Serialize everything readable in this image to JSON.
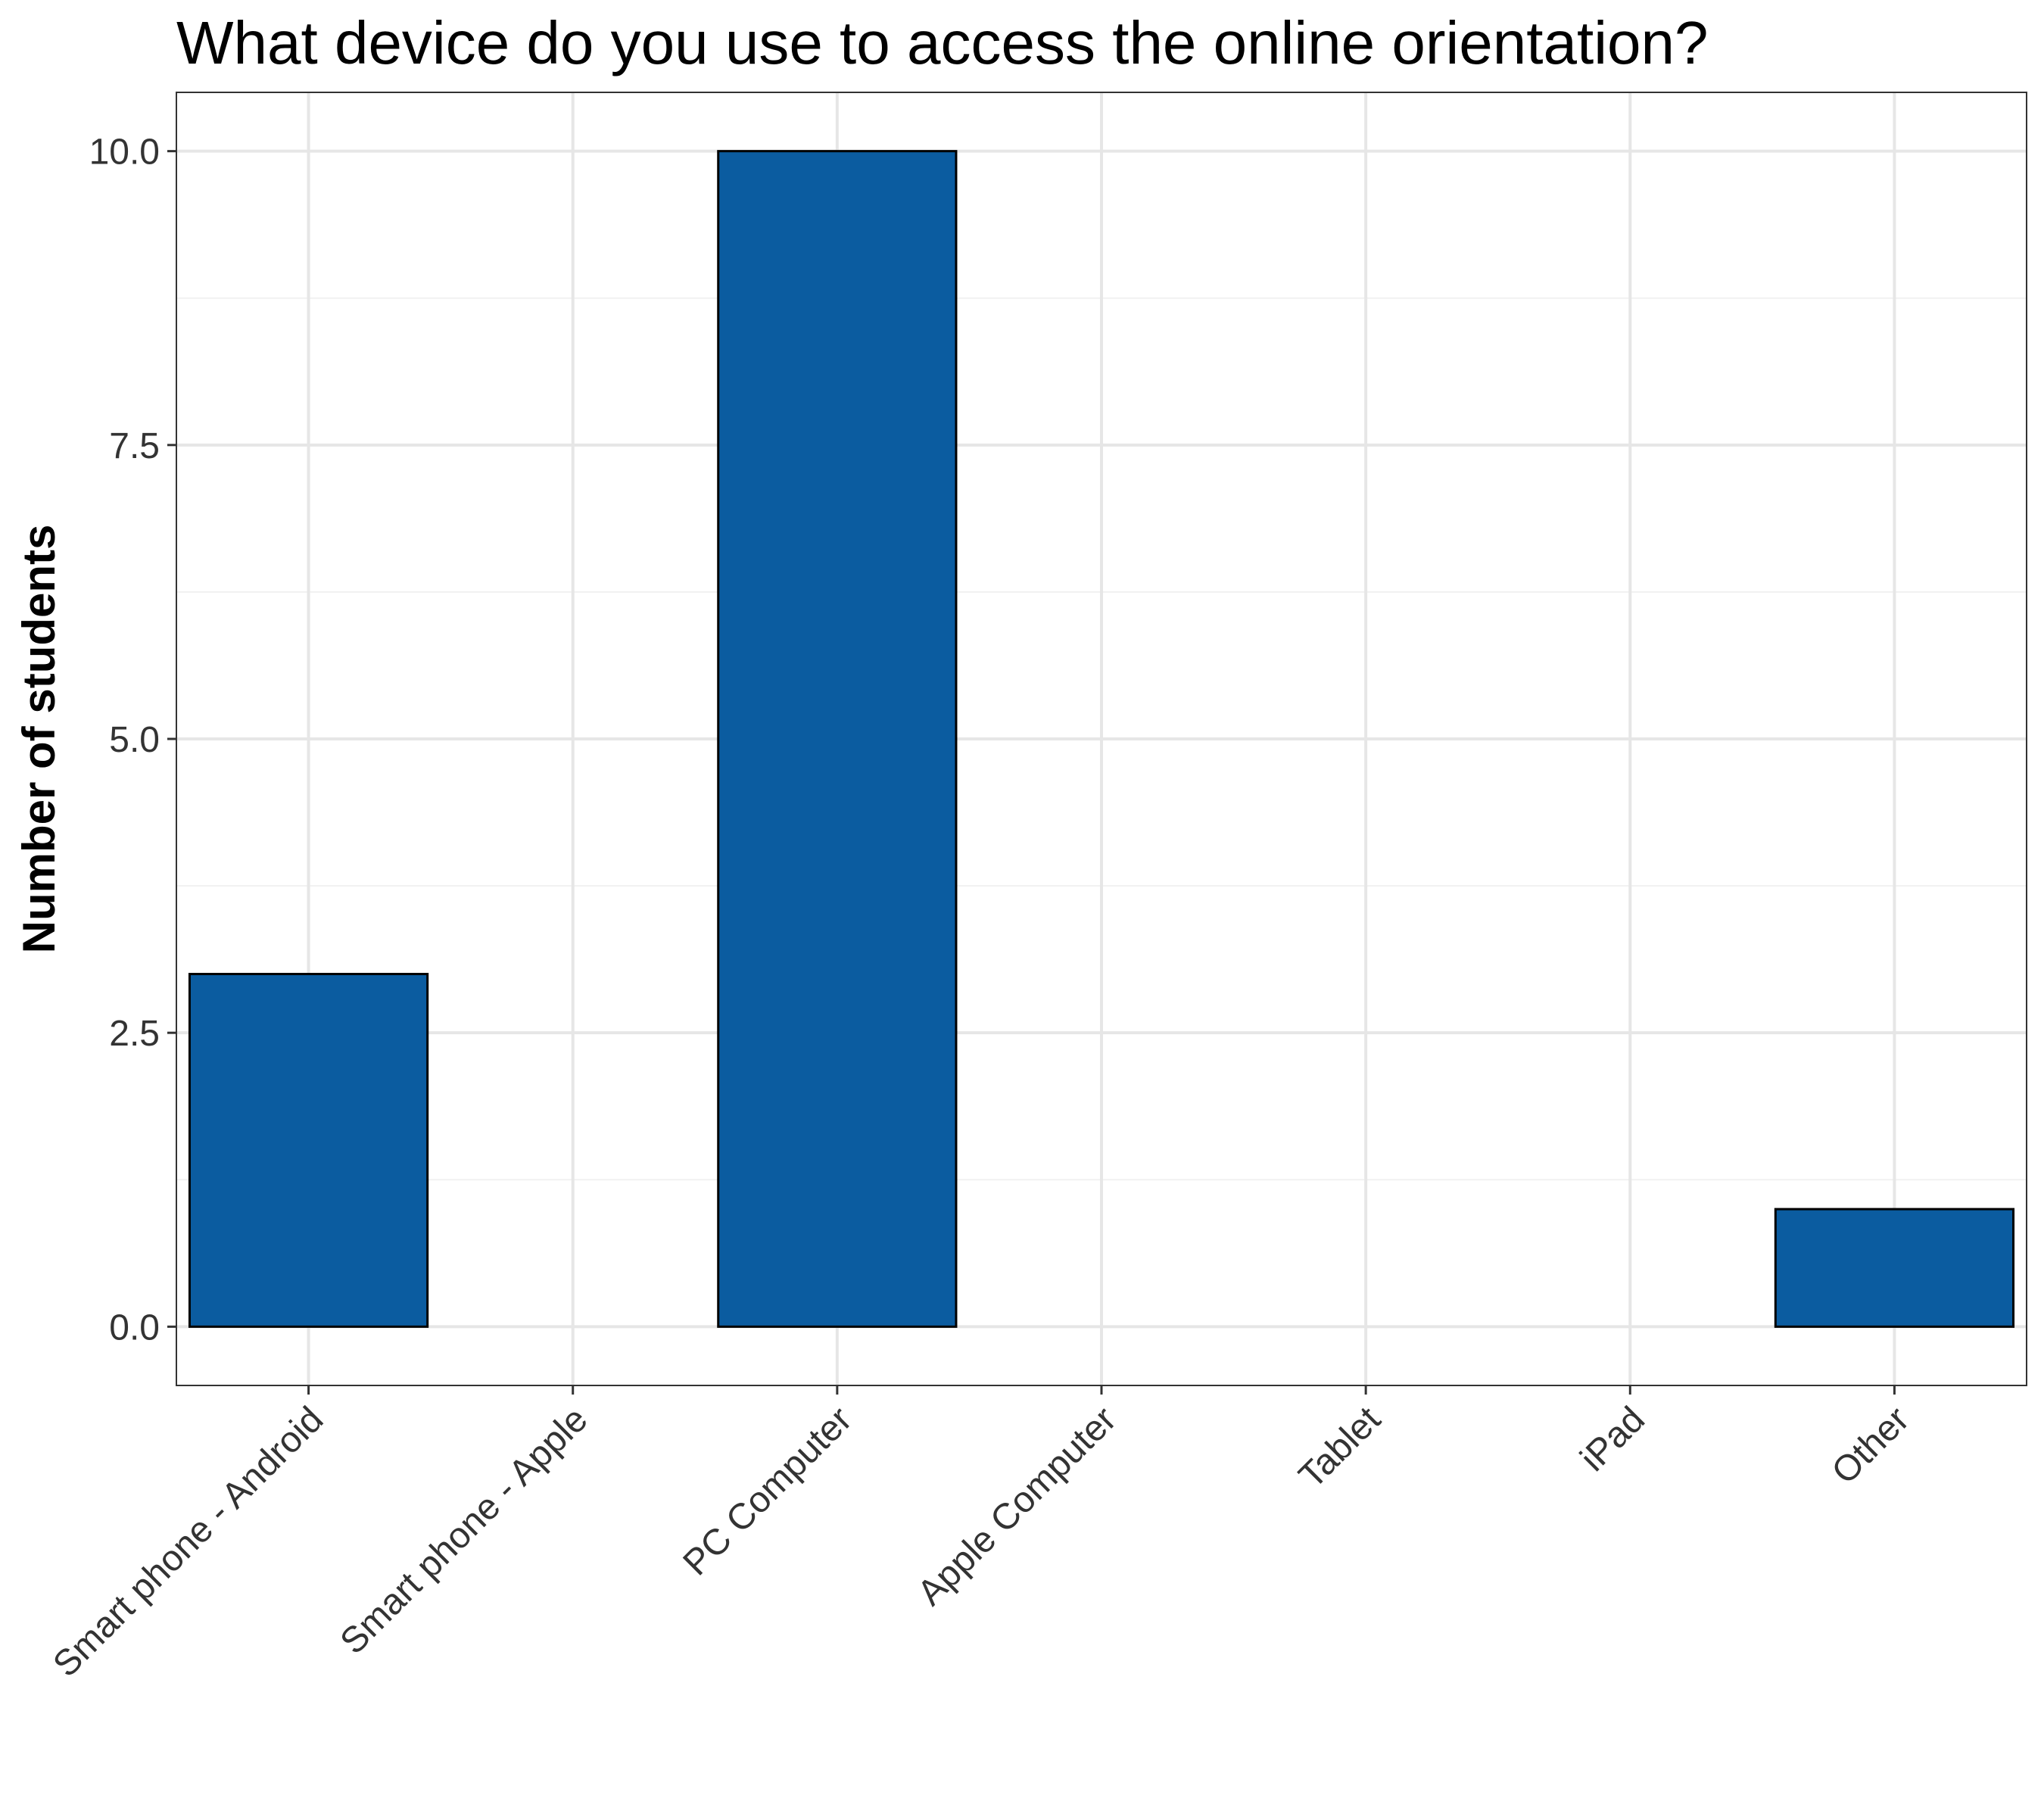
{
  "chart_data": {
    "type": "bar",
    "title": "What device do you use to access the online orientation?",
    "xlabel": "",
    "ylabel": "Number of students",
    "categories": [
      "Smart phone - Android",
      "Smart phone - Apple",
      "PC Computer",
      "Apple Computer",
      "Tablet",
      "iPad",
      "Other"
    ],
    "values": [
      3,
      0,
      10,
      0,
      0,
      0,
      1
    ],
    "ylim": [
      -0.5,
      10.5
    ],
    "yticks": [
      0,
      2.5,
      5,
      7.5,
      10
    ],
    "ytick_labels": [
      "0.0",
      "2.5",
      "5.0",
      "7.5",
      "10.0"
    ],
    "bar_color": "#0b5ca0",
    "grid": true,
    "legend": "none"
  }
}
